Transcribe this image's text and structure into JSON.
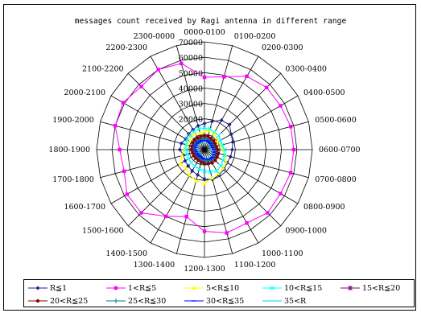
{
  "chart_data": {
    "type": "radar",
    "title": "messages count received by Ragi antenna in different range",
    "categories": [
      "0000-0100",
      "0100-0200",
      "0200-0300",
      "0300-0400",
      "0400-0500",
      "0500-0600",
      "0600-0700",
      "0700-0800",
      "0800-0900",
      "0900-1000",
      "1000-1100",
      "1100-1200",
      "1200-1300",
      "1300-1400",
      "1400-1500",
      "1500-1600",
      "1600-1700",
      "1700-1800",
      "1800-1900",
      "1900-2000",
      "2000-2100",
      "2100-2200",
      "2200-2300",
      "2300-0000"
    ],
    "radial_ticks": [
      0,
      10000,
      20000,
      30000,
      40000,
      50000,
      60000,
      70000
    ],
    "radial_tick_labels": [
      "",
      "",
      "20000",
      "30000",
      "40000",
      "50000",
      "60000",
      "70000"
    ],
    "rmax": 70000,
    "legend_position": "bottom",
    "series": [
      {
        "name": "R≦1",
        "color": "#1f1f8f",
        "marker": "diamond",
        "values": [
          17000,
          19000,
          22000,
          23000,
          20000,
          19000,
          18000,
          17500,
          17000,
          18000,
          19000,
          20000,
          19000,
          17000,
          16000,
          15000,
          14500,
          14000,
          16000,
          15500,
          14000,
          14500,
          15000,
          16000
        ]
      },
      {
        "name": "1<R≦5",
        "color": "#ff00ff",
        "marker": "square",
        "values": [
          47000,
          49000,
          55000,
          57000,
          57000,
          58000,
          58000,
          58000,
          57000,
          58000,
          55000,
          56000,
          53000,
          45000,
          50000,
          58000,
          58000,
          54000,
          55000,
          60000,
          61000,
          58000,
          60000,
          58000
        ]
      },
      {
        "name": "5<R≦10",
        "color": "#ffff00",
        "marker": "triangle",
        "values": [
          12000,
          13000,
          12000,
          11000,
          10000,
          11000,
          12000,
          14000,
          16000,
          17000,
          18000,
          19000,
          22000,
          21000,
          19000,
          17000,
          18000,
          15000,
          13000,
          12000,
          11000,
          12000,
          12000,
          11000
        ]
      },
      {
        "name": "10<R≦15",
        "color": "#00ffff",
        "marker": "x",
        "values": [
          14000,
          14000,
          13000,
          13000,
          12000,
          12000,
          13000,
          13500,
          14000,
          15000,
          16000,
          15000,
          14000,
          13000,
          12500,
          12000,
          12000,
          11500,
          12000,
          12500,
          13000,
          13000,
          13500,
          14000
        ]
      },
      {
        "name": "15<R≦20",
        "color": "#800080",
        "marker": "star",
        "values": [
          8000,
          8000,
          7500,
          7500,
          7000,
          7000,
          7500,
          8000,
          8500,
          9000,
          9000,
          8500,
          8000,
          7500,
          7000,
          7000,
          7000,
          7000,
          7500,
          7500,
          8000,
          8000,
          8000,
          8000
        ]
      },
      {
        "name": "20<R≦25",
        "color": "#800000",
        "marker": "circle",
        "values": [
          9000,
          9000,
          8500,
          8500,
          8000,
          8000,
          8500,
          9000,
          9500,
          10000,
          10000,
          9500,
          9000,
          8500,
          8000,
          8000,
          8000,
          8000,
          8500,
          8500,
          9000,
          9000,
          9000,
          9000
        ]
      },
      {
        "name": "25<R≦30",
        "color": "#008080",
        "marker": "plus",
        "values": [
          7000,
          7000,
          6500,
          6500,
          6000,
          6000,
          6500,
          7000,
          7500,
          8000,
          8000,
          7500,
          7000,
          6500,
          6000,
          6000,
          6000,
          6000,
          6500,
          6500,
          7000,
          7000,
          7000,
          7000
        ]
      },
      {
        "name": "30<R≦35",
        "color": "#0000ff",
        "marker": "dash",
        "values": [
          6000,
          6000,
          5500,
          5500,
          5000,
          5000,
          5500,
          6000,
          6500,
          7000,
          7000,
          6500,
          6000,
          5500,
          5000,
          5000,
          5000,
          5000,
          5500,
          5500,
          6000,
          6000,
          6000,
          6000
        ]
      },
      {
        "name": "35<R",
        "color": "#00ccff",
        "marker": "none",
        "values": [
          5000,
          5000,
          4500,
          4500,
          4000,
          4000,
          4500,
          5000,
          5500,
          6000,
          6000,
          5500,
          5000,
          4500,
          4000,
          4000,
          4000,
          4000,
          4500,
          4500,
          5000,
          5000,
          5000,
          5000
        ]
      }
    ]
  }
}
